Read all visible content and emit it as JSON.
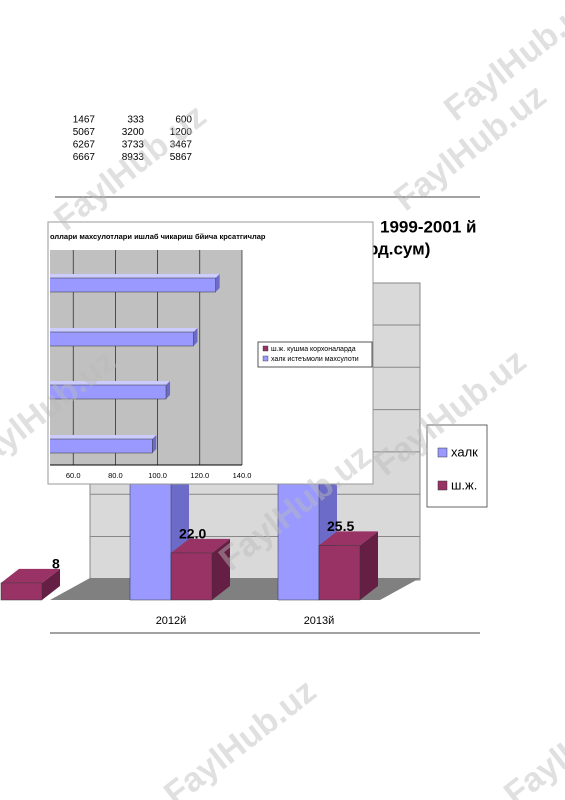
{
  "table": {
    "rows": [
      [
        1467,
        333,
        600
      ],
      [
        5067,
        3200,
        1200
      ],
      [
        6267,
        3733,
        3467
      ],
      [
        6667,
        8933,
        5867
      ]
    ]
  },
  "back_chart": {
    "title_lines": [
      "1999-2001 й",
      "рд.сум)"
    ],
    "categories": [
      null,
      "2012й",
      "2013й"
    ],
    "series": [
      {
        "name": "халк",
        "color": "#9999ff",
        "values": [
          null,
          60,
          70
        ]
      },
      {
        "name": "ш.ж.",
        "color": "#993366",
        "values": [
          8,
          22.0,
          25.5
        ],
        "value_labels": [
          "8",
          "22.0",
          "25.5"
        ]
      }
    ]
  },
  "front_chart": {
    "type": "bar",
    "title": "оллари махсулотлари ишлаб чикариш бйича крсатгичлар",
    "xlim": [
      40,
      140
    ],
    "xticks": [
      {
        "value": 60,
        "label": "60.0"
      },
      {
        "value": 80,
        "label": "80.0"
      },
      {
        "value": 100,
        "label": "100.0"
      },
      {
        "value": 120,
        "label": "120.0"
      },
      {
        "value": 140,
        "label": "140.0"
      }
    ],
    "grid": true,
    "series": [
      {
        "name": "ш.ж. кушма корхоналарда",
        "color": "#993366"
      },
      {
        "name": "халк истеъмоли махсулоти",
        "color": "#9999ff",
        "values": [
          127.5,
          117,
          104,
          97.5
        ]
      }
    ]
  },
  "watermark": "FaylHub.uz"
}
